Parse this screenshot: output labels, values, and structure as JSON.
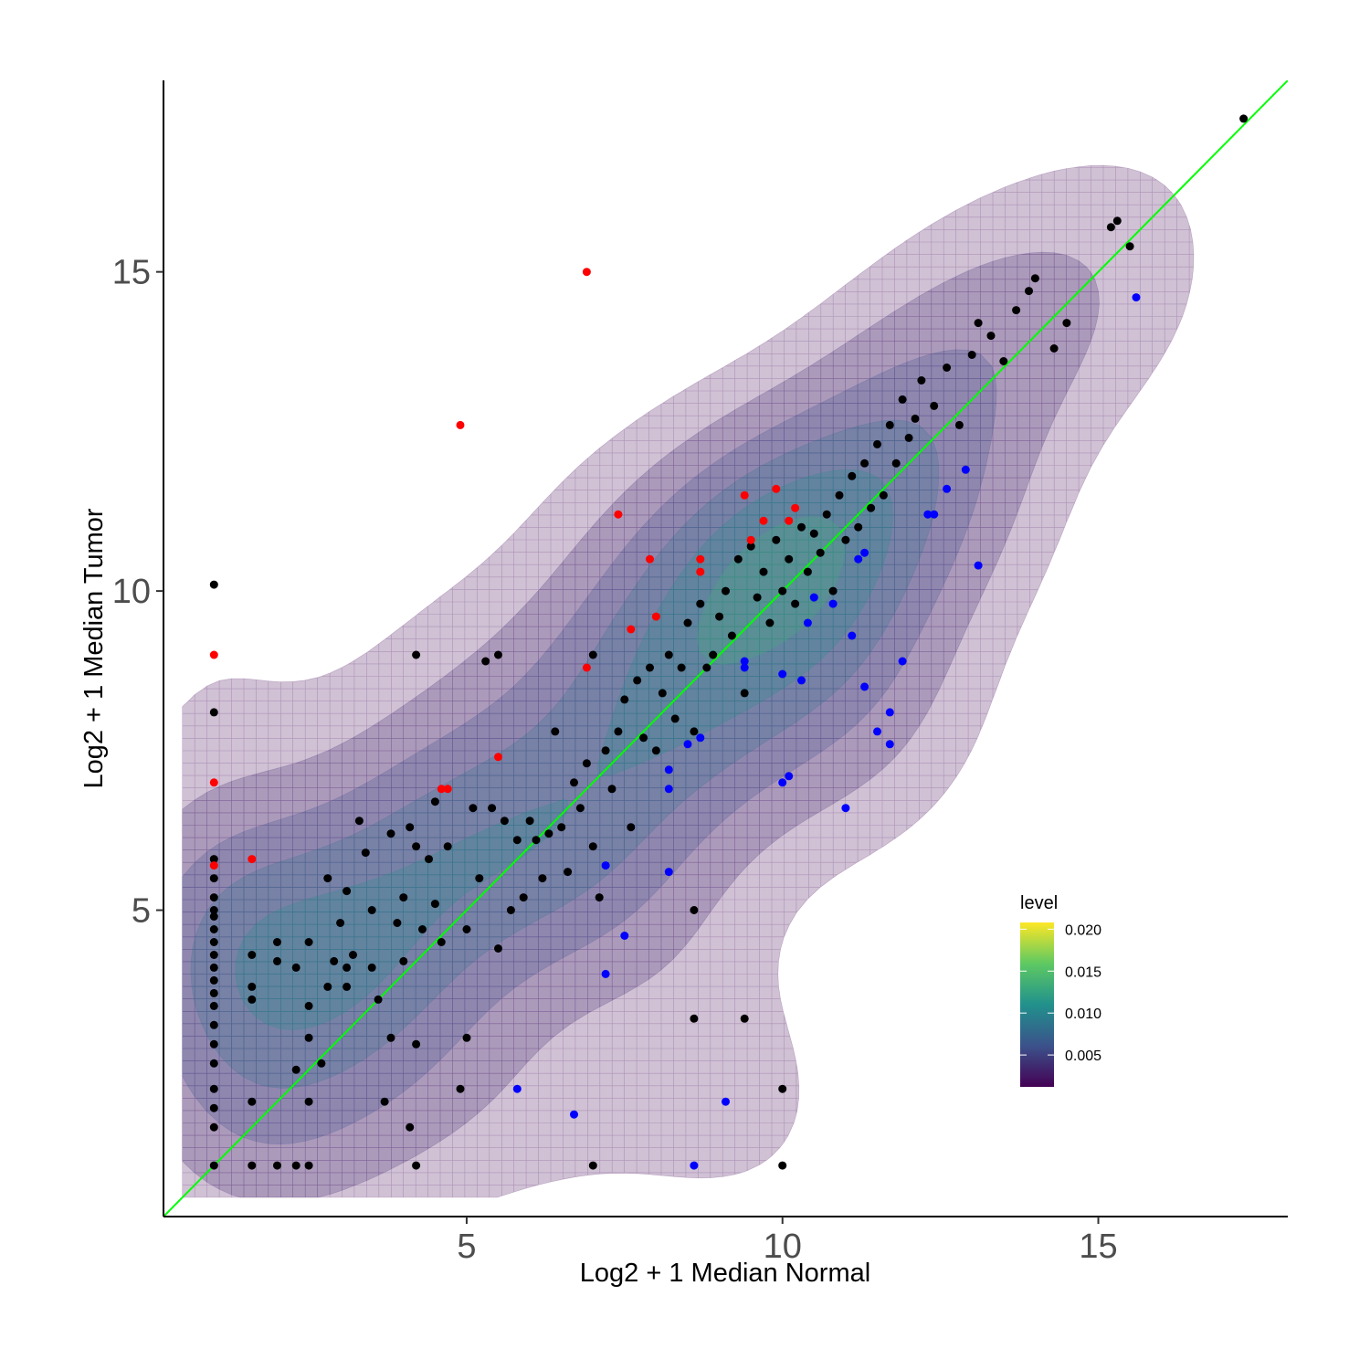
{
  "chart_data": {
    "type": "scatter",
    "xlabel": "Log2 + 1 Median Normal",
    "ylabel": "Log2 + 1 Median Tumor",
    "xlim": [
      0.2,
      18.0
    ],
    "ylim": [
      0.2,
      18.0
    ],
    "x_ticks": [
      "5",
      "10",
      "15"
    ],
    "y_ticks": [
      "5",
      "10",
      "15"
    ],
    "grid": false,
    "identity_line": {
      "slope": 1,
      "intercept": 0,
      "color": "#00ff00"
    },
    "density_contours": {
      "type": "2d-density",
      "fill_opacity": 0.25,
      "levels": [
        0.0015,
        0.0035,
        0.006,
        0.0085,
        0.011,
        0.0135,
        0.016,
        0.018
      ],
      "colorscale": "viridis"
    },
    "legend": {
      "title": "level",
      "position": "right",
      "min": 0.0012,
      "max": 0.0208,
      "labels": [
        "0.020",
        "0.015",
        "0.010",
        "0.005"
      ],
      "label_values": [
        0.02,
        0.015,
        0.01,
        0.005
      ]
    },
    "colors": {
      "default": "#000000",
      "up": "#ff0000",
      "down": "#0000ff"
    },
    "series": [
      {
        "color": "#000000",
        "points": [
          [
            1,
            1
          ],
          [
            1,
            1.6
          ],
          [
            1,
            1.9
          ],
          [
            1,
            2.2
          ],
          [
            1,
            2.6
          ],
          [
            1,
            2.9
          ],
          [
            1,
            3.2
          ],
          [
            1,
            3.5
          ],
          [
            1,
            3.7
          ],
          [
            1,
            3.9
          ],
          [
            1,
            4.1
          ],
          [
            1,
            4.3
          ],
          [
            1,
            4.5
          ],
          [
            1,
            4.7
          ],
          [
            1,
            4.9
          ],
          [
            1,
            5.0
          ],
          [
            1,
            5.2
          ],
          [
            1,
            5.5
          ],
          [
            1,
            5.8
          ],
          [
            1,
            8.1
          ],
          [
            1,
            10.1
          ],
          [
            1.6,
            1
          ],
          [
            1.6,
            2
          ],
          [
            1.6,
            3.6
          ],
          [
            1.6,
            3.8
          ],
          [
            1.6,
            4.3
          ],
          [
            2,
            1
          ],
          [
            2,
            4.2
          ],
          [
            2,
            4.5
          ],
          [
            2.3,
            1
          ],
          [
            2.3,
            2.5
          ],
          [
            2.3,
            4.1
          ],
          [
            2.5,
            1
          ],
          [
            2.5,
            2
          ],
          [
            2.5,
            3.0
          ],
          [
            2.5,
            3.5
          ],
          [
            2.5,
            4.5
          ],
          [
            2.7,
            2.6
          ],
          [
            2.8,
            3.8
          ],
          [
            2.8,
            5.5
          ],
          [
            2.9,
            4.2
          ],
          [
            3,
            4.8
          ],
          [
            3.1,
            3.8
          ],
          [
            3.1,
            4.1
          ],
          [
            3.1,
            5.3
          ],
          [
            3.2,
            4.3
          ],
          [
            3.3,
            6.4
          ],
          [
            3.4,
            5.9
          ],
          [
            3.5,
            4.1
          ],
          [
            3.5,
            5.0
          ],
          [
            3.6,
            3.6
          ],
          [
            3.7,
            2.0
          ],
          [
            3.8,
            3.0
          ],
          [
            3.8,
            6.2
          ],
          [
            3.9,
            4.8
          ],
          [
            4,
            4.2
          ],
          [
            4,
            5.2
          ],
          [
            4.1,
            1.6
          ],
          [
            4.1,
            6.3
          ],
          [
            4.2,
            6.0
          ],
          [
            4.3,
            4.7
          ],
          [
            4.4,
            5.8
          ],
          [
            4.5,
            6.7
          ],
          [
            4.5,
            5.1
          ],
          [
            4.6,
            4.5
          ],
          [
            4.7,
            6.0
          ],
          [
            4.9,
            2.2
          ],
          [
            5,
            3.0
          ],
          [
            5,
            4.7
          ],
          [
            5.1,
            6.6
          ],
          [
            5.2,
            5.5
          ],
          [
            5.3,
            8.9
          ],
          [
            5.4,
            6.6
          ],
          [
            5.5,
            4.4
          ],
          [
            5.6,
            6.4
          ],
          [
            5.7,
            5.0
          ],
          [
            5.8,
            6.1
          ],
          [
            5.9,
            5.2
          ],
          [
            6.0,
            6.4
          ],
          [
            6.1,
            6.1
          ],
          [
            6.2,
            5.5
          ],
          [
            6.3,
            6.2
          ],
          [
            6.4,
            7.8
          ],
          [
            6.5,
            6.3
          ],
          [
            6.6,
            5.6
          ],
          [
            6.7,
            7.0
          ],
          [
            6.8,
            6.6
          ],
          [
            6.9,
            7.3
          ],
          [
            7.0,
            6.0
          ],
          [
            7.0,
            9.0
          ],
          [
            7.1,
            5.2
          ],
          [
            7.2,
            7.5
          ],
          [
            7.3,
            6.9
          ],
          [
            7.4,
            7.8
          ],
          [
            7.5,
            8.3
          ],
          [
            7.6,
            6.3
          ],
          [
            7.7,
            8.6
          ],
          [
            7.8,
            7.7
          ],
          [
            7.9,
            8.8
          ],
          [
            8.0,
            7.5
          ],
          [
            8.1,
            8.4
          ],
          [
            8.2,
            9.0
          ],
          [
            8.3,
            8.0
          ],
          [
            8.4,
            8.8
          ],
          [
            8.5,
            9.5
          ],
          [
            8.6,
            7.8
          ],
          [
            8.7,
            9.8
          ],
          [
            8.8,
            8.8
          ],
          [
            8.9,
            9.0
          ],
          [
            9.0,
            9.6
          ],
          [
            9.1,
            10.0
          ],
          [
            9.2,
            9.3
          ],
          [
            9.3,
            10.5
          ],
          [
            9.4,
            8.4
          ],
          [
            9.5,
            10.7
          ],
          [
            9.6,
            9.9
          ],
          [
            9.7,
            10.3
          ],
          [
            9.8,
            9.5
          ],
          [
            9.9,
            10.8
          ],
          [
            10.0,
            10.0
          ],
          [
            10.1,
            10.5
          ],
          [
            10.2,
            9.8
          ],
          [
            10.3,
            11.0
          ],
          [
            10.4,
            10.3
          ],
          [
            10.5,
            10.9
          ],
          [
            10.6,
            10.6
          ],
          [
            10.7,
            11.2
          ],
          [
            10.8,
            10.0
          ],
          [
            10.9,
            11.5
          ],
          [
            11.0,
            10.8
          ],
          [
            11.1,
            11.8
          ],
          [
            11.2,
            11.0
          ],
          [
            11.3,
            12.0
          ],
          [
            11.4,
            11.3
          ],
          [
            11.5,
            12.3
          ],
          [
            11.6,
            11.5
          ],
          [
            11.7,
            12.6
          ],
          [
            11.8,
            12.0
          ],
          [
            11.9,
            13.0
          ],
          [
            12.0,
            12.4
          ],
          [
            12.1,
            12.7
          ],
          [
            12.2,
            13.3
          ],
          [
            12.4,
            12.9
          ],
          [
            12.6,
            13.5
          ],
          [
            12.8,
            12.6
          ],
          [
            13.0,
            13.7
          ],
          [
            13.1,
            14.2
          ],
          [
            13.3,
            14.0
          ],
          [
            13.5,
            13.6
          ],
          [
            13.7,
            14.4
          ],
          [
            13.9,
            14.7
          ],
          [
            14.0,
            14.9
          ],
          [
            14.3,
            13.8
          ],
          [
            14.5,
            14.2
          ],
          [
            15.2,
            15.7
          ],
          [
            15.3,
            15.8
          ],
          [
            15.5,
            15.4
          ],
          [
            17.3,
            17.4
          ],
          [
            7.0,
            1
          ],
          [
            10,
            1
          ],
          [
            10,
            2.2
          ],
          [
            9.4,
            3.3
          ],
          [
            8.6,
            3.3
          ],
          [
            8.6,
            5.0
          ],
          [
            4.2,
            1
          ],
          [
            4.2,
            2.9
          ],
          [
            4.2,
            9.0
          ],
          [
            5.5,
            9.0
          ]
        ]
      },
      {
        "color": "#ff0000",
        "points": [
          [
            1,
            5.7
          ],
          [
            1,
            7.0
          ],
          [
            1,
            9.0
          ],
          [
            1.6,
            5.8
          ],
          [
            4.6,
            6.9
          ],
          [
            4.7,
            6.9
          ],
          [
            4.9,
            12.6
          ],
          [
            5.5,
            7.4
          ],
          [
            6.9,
            15.0
          ],
          [
            7.4,
            11.2
          ],
          [
            7.6,
            9.4
          ],
          [
            7.9,
            10.5
          ],
          [
            8.0,
            9.6
          ],
          [
            8.7,
            10.3
          ],
          [
            8.7,
            10.5
          ],
          [
            9.4,
            11.5
          ],
          [
            9.5,
            10.8
          ],
          [
            9.7,
            11.1
          ],
          [
            9.9,
            11.6
          ],
          [
            10.1,
            11.1
          ],
          [
            10.2,
            11.3
          ],
          [
            6.9,
            8.8
          ]
        ]
      },
      {
        "color": "#0000ff",
        "points": [
          [
            5.8,
            2.2
          ],
          [
            6.7,
            1.8
          ],
          [
            7.2,
            4.0
          ],
          [
            7.2,
            5.7
          ],
          [
            7.5,
            4.6
          ],
          [
            8.2,
            6.9
          ],
          [
            8.2,
            7.2
          ],
          [
            8.2,
            5.6
          ],
          [
            8.5,
            7.6
          ],
          [
            8.6,
            1
          ],
          [
            8.7,
            7.7
          ],
          [
            9.1,
            2.0
          ],
          [
            9.4,
            8.8
          ],
          [
            9.4,
            8.9
          ],
          [
            10.0,
            7.0
          ],
          [
            10.0,
            8.7
          ],
          [
            10.1,
            7.1
          ],
          [
            10.3,
            8.6
          ],
          [
            10.4,
            9.5
          ],
          [
            10.5,
            9.9
          ],
          [
            11.0,
            6.6
          ],
          [
            11.1,
            9.3
          ],
          [
            11.3,
            8.5
          ],
          [
            11.5,
            7.8
          ],
          [
            11.7,
            7.6
          ],
          [
            11.7,
            8.1
          ],
          [
            11.9,
            8.9
          ],
          [
            12.3,
            11.2
          ],
          [
            12.4,
            11.2
          ],
          [
            12.6,
            11.6
          ],
          [
            12.9,
            11.9
          ],
          [
            13.1,
            10.4
          ],
          [
            15.6,
            14.6
          ],
          [
            11.3,
            10.6
          ],
          [
            11.2,
            10.5
          ],
          [
            10.8,
            9.8
          ]
        ]
      }
    ]
  }
}
